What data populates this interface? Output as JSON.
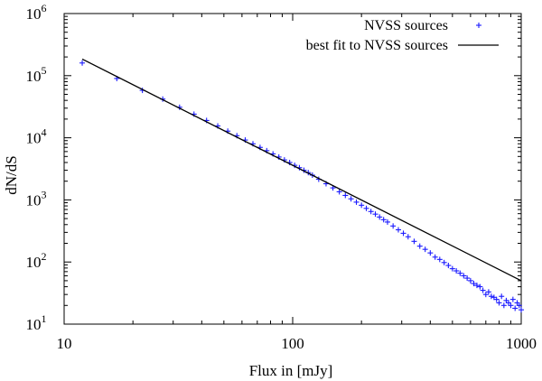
{
  "chart_data": {
    "type": "scatter",
    "xlabel": "Flux in [mJy]",
    "ylabel": "dN/dS",
    "xscale": "log",
    "yscale": "log",
    "xlim": [
      10,
      1000
    ],
    "ylim": [
      10,
      1000000
    ],
    "x_ticks": [
      {
        "value": 10,
        "label": "10"
      },
      {
        "value": 100,
        "label": "100"
      },
      {
        "value": 1000,
        "label": "1000"
      }
    ],
    "y_ticks": [
      {
        "value": 10,
        "base": "10",
        "exp": "1"
      },
      {
        "value": 100,
        "base": "10",
        "exp": "2"
      },
      {
        "value": 1000,
        "base": "10",
        "exp": "3"
      },
      {
        "value": 10000,
        "base": "10",
        "exp": "4"
      },
      {
        "value": 100000,
        "base": "10",
        "exp": "5"
      },
      {
        "value": 1000000,
        "base": "10",
        "exp": "6"
      }
    ],
    "grid": false,
    "legend_position": "top-right",
    "series": [
      {
        "name": "NVSS sources",
        "kind": "points",
        "marker": "+",
        "color": "#1a1aff",
        "x": [
          12,
          17,
          22,
          27,
          32,
          37,
          42,
          47,
          52,
          57,
          62,
          67,
          72,
          77,
          82,
          87,
          92,
          97,
          102,
          107,
          112,
          117,
          122,
          130,
          140,
          150,
          160,
          170,
          180,
          190,
          200,
          210,
          220,
          230,
          240,
          250,
          260,
          275,
          290,
          305,
          320,
          340,
          360,
          380,
          400,
          420,
          440,
          460,
          480,
          500,
          520,
          540,
          560,
          580,
          600,
          620,
          640,
          660,
          680,
          700,
          720,
          740,
          760,
          780,
          800,
          820,
          840,
          860,
          880,
          900,
          920,
          940,
          960,
          980,
          1000
        ],
        "y": [
          160000,
          90000,
          58000,
          42000,
          31000,
          24000,
          19000,
          15500,
          12800,
          10800,
          9200,
          8000,
          7000,
          6200,
          5500,
          4900,
          4400,
          4000,
          3600,
          3300,
          3000,
          2750,
          2500,
          2150,
          1820,
          1560,
          1350,
          1180,
          1040,
          920,
          820,
          730,
          650,
          590,
          530,
          480,
          440,
          380,
          330,
          290,
          255,
          215,
          180,
          160,
          140,
          120,
          110,
          98,
          88,
          78,
          72,
          66,
          60,
          55,
          50,
          45,
          42,
          40,
          35,
          30,
          33,
          28,
          27,
          25,
          22,
          28,
          20,
          24,
          22,
          20,
          25,
          18,
          22,
          20,
          17
        ]
      },
      {
        "name": "best fit to NVSS sources",
        "kind": "line",
        "color": "#000000",
        "x": [
          12,
          1000
        ],
        "y": [
          185000,
          50
        ]
      }
    ]
  }
}
